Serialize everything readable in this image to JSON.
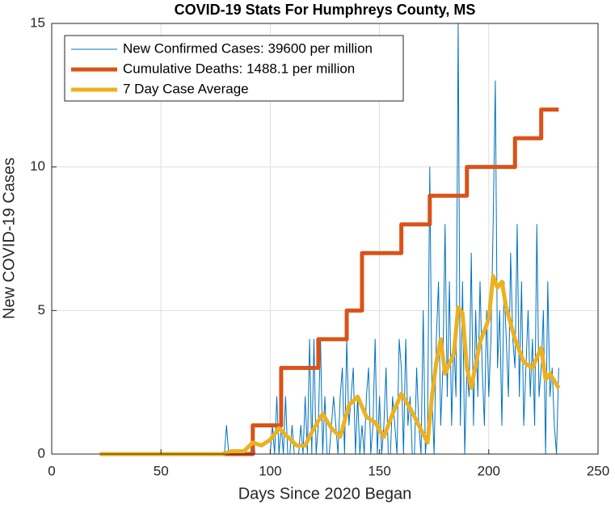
{
  "chart_data": {
    "type": "line",
    "title": "COVID-19 Stats For Humphreys County, MS",
    "xlabel": "Days Since 2020 Began",
    "ylabel": "New COVID-19 Cases",
    "xlim": [
      0,
      250
    ],
    "xticks": [
      0,
      50,
      100,
      150,
      200,
      250
    ],
    "ylim": [
      0,
      15
    ],
    "yticks": [
      0,
      5,
      10,
      15
    ],
    "grid": true,
    "legend_position": "upper left",
    "series": [
      {
        "name": "New Confirmed Cases: 39600 per million",
        "color": "#0072bd",
        "width": 1,
        "x": [
          22,
          23,
          24,
          25,
          26,
          27,
          28,
          29,
          30,
          31,
          32,
          33,
          34,
          35,
          36,
          37,
          38,
          39,
          40,
          41,
          42,
          43,
          44,
          45,
          46,
          47,
          48,
          49,
          50,
          51,
          52,
          53,
          54,
          55,
          56,
          57,
          58,
          59,
          60,
          61,
          62,
          63,
          64,
          65,
          66,
          67,
          68,
          69,
          70,
          71,
          72,
          73,
          74,
          75,
          76,
          77,
          78,
          79,
          80,
          81,
          82,
          83,
          84,
          85,
          86,
          87,
          88,
          89,
          90,
          91,
          92,
          93,
          94,
          95,
          96,
          97,
          98,
          99,
          100,
          101,
          102,
          103,
          104,
          105,
          106,
          107,
          108,
          109,
          110,
          111,
          112,
          113,
          114,
          115,
          116,
          117,
          118,
          119,
          120,
          121,
          122,
          123,
          124,
          125,
          126,
          127,
          128,
          129,
          130,
          131,
          132,
          133,
          134,
          135,
          136,
          137,
          138,
          139,
          140,
          141,
          142,
          143,
          144,
          145,
          146,
          147,
          148,
          149,
          150,
          151,
          152,
          153,
          154,
          155,
          156,
          157,
          158,
          159,
          160,
          161,
          162,
          163,
          164,
          165,
          166,
          167,
          168,
          169,
          170,
          171,
          172,
          173,
          174,
          175,
          176,
          177,
          178,
          179,
          180,
          181,
          182,
          183,
          184,
          185,
          186,
          187,
          188,
          189,
          190,
          191,
          192,
          193,
          194,
          195,
          196,
          197,
          198,
          199,
          200,
          201,
          202,
          203,
          204,
          205,
          206,
          207,
          208,
          209,
          210,
          211,
          212,
          213,
          214,
          215,
          216,
          217,
          218,
          219,
          220,
          221,
          222,
          223,
          224,
          225,
          226,
          227,
          228,
          229,
          230,
          231,
          232
        ],
        "values": [
          0,
          0,
          0,
          0,
          0,
          0,
          0,
          0,
          0,
          0,
          0,
          0,
          0,
          0,
          0,
          0,
          0,
          0,
          0,
          0,
          0,
          0,
          0,
          0,
          0,
          0,
          0,
          0,
          0,
          0,
          0,
          0,
          0,
          0,
          0,
          0,
          0,
          0,
          0,
          0,
          0,
          0,
          0,
          0,
          0,
          0,
          0,
          0,
          0,
          0,
          0,
          0,
          0,
          0,
          0,
          0,
          0,
          0,
          1,
          0,
          0,
          0,
          0,
          0,
          0,
          0,
          0,
          0,
          0,
          0,
          1,
          0,
          0,
          0,
          0,
          0,
          0,
          0,
          0,
          1,
          0,
          2,
          0,
          1,
          0,
          2,
          0,
          0,
          1,
          0,
          0,
          0,
          1,
          0,
          2,
          0,
          4,
          0,
          4,
          0,
          1,
          4,
          0,
          2,
          0,
          0,
          1,
          2,
          1,
          0,
          2,
          3,
          0,
          4,
          1,
          2,
          3,
          0,
          2,
          0,
          1,
          0,
          2,
          3,
          0,
          1,
          4,
          0,
          2,
          0,
          1,
          3,
          0,
          0,
          2,
          1,
          0,
          4,
          3,
          0,
          4,
          1,
          2,
          0,
          0,
          3,
          1,
          0,
          5,
          0,
          1,
          10,
          2,
          0,
          4,
          6,
          1,
          3,
          8,
          2,
          6,
          1,
          4,
          2,
          15,
          1,
          6,
          0,
          3,
          2,
          7,
          1,
          5,
          2,
          6,
          3,
          1,
          5,
          2,
          4,
          8,
          13,
          3,
          5,
          1,
          6,
          4,
          2,
          7,
          4,
          3,
          8,
          2,
          6,
          1,
          3,
          5,
          2,
          4,
          1,
          8,
          2,
          3,
          5,
          0,
          6,
          2,
          3,
          1,
          0,
          3
        ]
      },
      {
        "name": "Cumulative Deaths: 1488.1 per million",
        "color": "#d95319",
        "width": 5,
        "x": [
          22,
          92,
          92,
          105,
          105,
          122,
          122,
          135,
          135,
          142,
          142,
          160,
          160,
          173,
          173,
          190,
          190,
          212,
          212,
          224,
          224,
          232
        ],
        "values": [
          0,
          0,
          1,
          1,
          3,
          3,
          4,
          4,
          5,
          5,
          7,
          7,
          8,
          8,
          9,
          9,
          10,
          10,
          11,
          11,
          12,
          12
        ]
      },
      {
        "name": "7 Day Case Average",
        "color": "#edb120",
        "width": 5,
        "x": [
          22,
          78,
          82,
          88,
          92,
          96,
          100,
          104,
          108,
          112,
          116,
          120,
          124,
          128,
          132,
          136,
          140,
          144,
          148,
          152,
          156,
          160,
          164,
          168,
          172,
          174,
          176,
          178,
          180,
          184,
          186,
          188,
          190,
          192,
          196,
          200,
          202,
          204,
          206,
          208,
          212,
          216,
          220,
          224,
          226,
          228,
          232
        ],
        "values": [
          0,
          0,
          0.1,
          0.1,
          0.4,
          0.3,
          0.5,
          0.9,
          0.6,
          0.3,
          0.3,
          0.9,
          1.4,
          0.9,
          0.6,
          1.7,
          2.0,
          1.3,
          1.1,
          0.6,
          1.4,
          2.1,
          1.6,
          1.0,
          0.4,
          2.0,
          3.2,
          4.0,
          2.8,
          3.5,
          5.1,
          4.9,
          3.0,
          2.3,
          3.9,
          4.7,
          6.2,
          5.8,
          6.0,
          5.1,
          4.0,
          3.2,
          3.0,
          3.7,
          2.6,
          2.8,
          2.3
        ]
      }
    ]
  }
}
